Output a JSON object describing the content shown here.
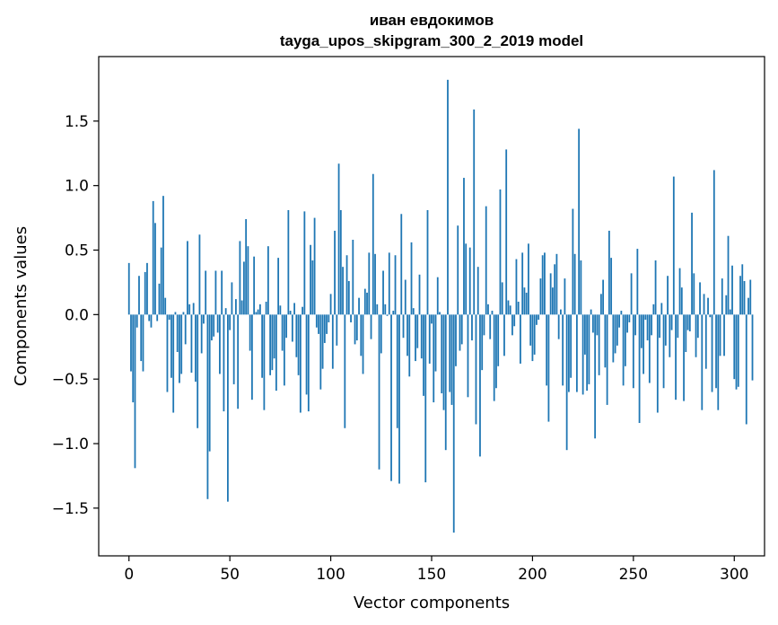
{
  "chart_data": {
    "type": "bar",
    "title_lines": [
      "иван евдокимов",
      "tayga_upos_skipgram_300_2_2019 model"
    ],
    "xlabel": "Vector components",
    "ylabel": "Components values",
    "xlim": [
      -15,
      315
    ],
    "ylim": [
      -1.87,
      2.0
    ],
    "x_ticks": [
      0,
      50,
      100,
      150,
      200,
      250,
      300
    ],
    "x_tick_labels": [
      "0",
      "50",
      "100",
      "150",
      "200",
      "250",
      "300"
    ],
    "y_ticks": [
      -1.5,
      -1.0,
      -0.5,
      0.0,
      0.5,
      1.0,
      1.5
    ],
    "y_tick_labels": [
      "−1.5",
      "−1.0",
      "−0.5",
      "0.0",
      "0.5",
      "1.0",
      "1.5"
    ],
    "grid": false,
    "bar_color": "#1f77b4",
    "values": [
      0.4,
      -0.44,
      -0.68,
      -1.19,
      -0.1,
      0.3,
      -0.36,
      -0.44,
      0.33,
      0.4,
      -0.05,
      -0.1,
      0.88,
      0.71,
      -0.05,
      0.24,
      0.52,
      0.92,
      0.13,
      -0.6,
      -0.04,
      -0.49,
      -0.76,
      0.02,
      -0.29,
      -0.53,
      -0.46,
      0.02,
      -0.23,
      0.57,
      0.08,
      -0.45,
      0.09,
      -0.52,
      -0.88,
      0.62,
      -0.3,
      -0.07,
      0.34,
      -1.43,
      -1.06,
      -0.2,
      -0.17,
      0.34,
      -0.14,
      -0.46,
      0.34,
      -0.75,
      0.05,
      -1.45,
      -0.12,
      0.25,
      -0.54,
      0.12,
      -0.73,
      0.57,
      0.11,
      0.41,
      0.74,
      0.53,
      -0.28,
      -0.66,
      0.45,
      0.02,
      0.04,
      0.08,
      -0.49,
      -0.74,
      0.1,
      0.53,
      -0.47,
      -0.43,
      -0.34,
      -0.59,
      0.44,
      0.07,
      -0.28,
      -0.55,
      -0.18,
      0.81,
      0.03,
      -0.21,
      0.09,
      -0.33,
      -0.47,
      -0.76,
      0.06,
      0.8,
      -0.62,
      -0.75,
      0.54,
      0.42,
      0.75,
      -0.1,
      -0.15,
      -0.58,
      -0.42,
      -0.22,
      -0.15,
      -0.06,
      0.16,
      -0.42,
      0.65,
      -0.24,
      1.17,
      0.81,
      0.37,
      -0.88,
      0.46,
      0.26,
      -0.06,
      0.58,
      -0.23,
      -0.2,
      0.13,
      -0.32,
      -0.46,
      0.2,
      0.17,
      0.48,
      -0.19,
      1.09,
      0.47,
      0.08,
      -1.2,
      -0.3,
      0.34,
      0.08,
      -0.01,
      0.48,
      -1.29,
      0.03,
      0.46,
      -0.88,
      -1.31,
      0.78,
      -0.18,
      0.27,
      -0.32,
      -0.48,
      0.56,
      0.05,
      -0.36,
      -0.26,
      0.31,
      -0.34,
      -0.63,
      -1.3,
      0.81,
      -0.38,
      -0.07,
      -0.68,
      -0.44,
      0.29,
      0.02,
      -0.61,
      -0.74,
      -1.05,
      1.82,
      -0.6,
      -0.7,
      -1.69,
      -0.4,
      0.69,
      -0.28,
      -0.23,
      1.06,
      0.55,
      -0.64,
      0.52,
      -0.2,
      1.59,
      -0.85,
      0.37,
      -1.1,
      -0.43,
      -0.16,
      0.84,
      0.08,
      -0.19,
      0.03,
      -0.67,
      -0.57,
      -0.4,
      0.97,
      0.25,
      -0.32,
      1.28,
      0.11,
      0.07,
      -0.16,
      -0.09,
      0.43,
      0.1,
      -0.38,
      0.48,
      0.21,
      0.17,
      0.55,
      -0.24,
      -0.36,
      -0.31,
      -0.08,
      -0.04,
      0.28,
      0.46,
      0.48,
      -0.55,
      -0.83,
      0.32,
      0.21,
      0.39,
      0.47,
      -0.19,
      0.04,
      -0.55,
      0.28,
      -1.05,
      -0.6,
      -0.49,
      0.82,
      0.47,
      -0.6,
      1.44,
      0.42,
      -0.62,
      -0.31,
      -0.59,
      -0.54,
      0.04,
      -0.14,
      -0.96,
      -0.16,
      -0.47,
      0.16,
      0.27,
      -0.41,
      -0.7,
      0.65,
      0.44,
      -0.37,
      -0.3,
      -0.24,
      -0.1,
      0.03,
      -0.55,
      -0.4,
      -0.14,
      -0.06,
      0.32,
      -0.57,
      -0.16,
      0.51,
      -0.84,
      -0.26,
      -0.46,
      -0.04,
      -0.2,
      -0.53,
      -0.16,
      0.08,
      0.42,
      -0.76,
      -0.18,
      0.09,
      -0.57,
      -0.24,
      0.3,
      -0.33,
      -0.12,
      1.07,
      -0.66,
      -0.18,
      0.36,
      0.21,
      -0.67,
      -0.29,
      -0.12,
      -0.13,
      0.79,
      0.32,
      -0.33,
      -0.18,
      0.25,
      -0.74,
      0.16,
      -0.42,
      0.13,
      -0.02,
      -0.6,
      1.12,
      -0.57,
      -0.74,
      -0.32,
      0.28,
      -0.32,
      0.15,
      0.61,
      0.04,
      0.38,
      -0.5,
      -0.58,
      -0.56,
      0.3,
      0.39,
      0.26,
      -0.85,
      0.13,
      0.27,
      -0.51
    ]
  }
}
